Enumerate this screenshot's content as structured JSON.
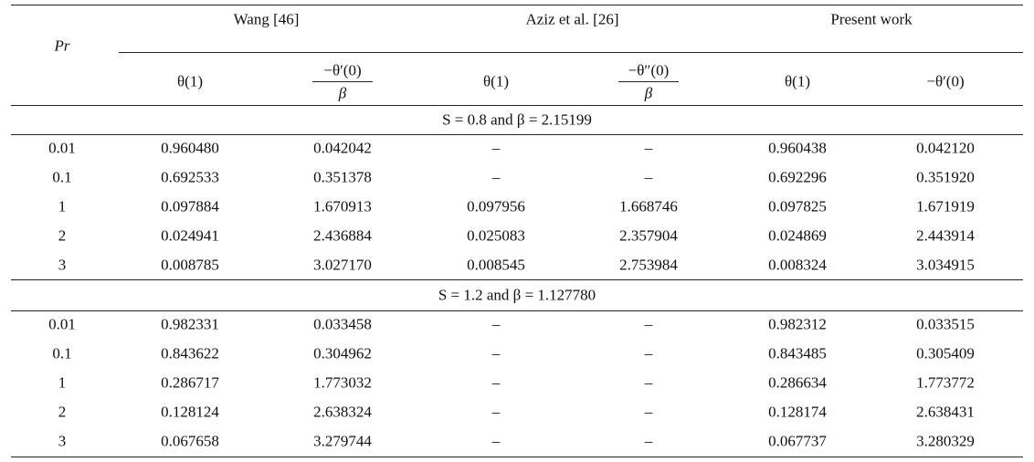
{
  "table": {
    "corner": "Pr",
    "groups": [
      "Wang [46]",
      "Aziz et al. [26]",
      "Present work"
    ],
    "columns": [
      {
        "text": "θ(1)"
      },
      {
        "numerator": "−θ′(0)",
        "denominator": "β"
      },
      {
        "text": "θ(1)"
      },
      {
        "numerator": "−θ″(0)",
        "denominator": "β"
      },
      {
        "text": "θ(1)"
      },
      {
        "text": "−θ′(0)"
      }
    ],
    "sections": [
      {
        "caption": "S = 0.8 and β = 2.15199",
        "rows": [
          [
            "0.01",
            "0.960480",
            "0.042042",
            "–",
            "–",
            "0.960438",
            "0.042120"
          ],
          [
            "0.1",
            "0.692533",
            "0.351378",
            "–",
            "–",
            "0.692296",
            "0.351920"
          ],
          [
            "1",
            "0.097884",
            "1.670913",
            "0.097956",
            "1.668746",
            "0.097825",
            "1.671919"
          ],
          [
            "2",
            "0.024941",
            "2.436884",
            "0.025083",
            "2.357904",
            "0.024869",
            "2.443914"
          ],
          [
            "3",
            "0.008785",
            "3.027170",
            "0.008545",
            "2.753984",
            "0.008324",
            "3.034915"
          ]
        ]
      },
      {
        "caption": "S = 1.2 and β = 1.127780",
        "rows": [
          [
            "0.01",
            "0.982331",
            "0.033458",
            "–",
            "–",
            "0.982312",
            "0.033515"
          ],
          [
            "0.1",
            "0.843622",
            "0.304962",
            "–",
            "–",
            "0.843485",
            "0.305409"
          ],
          [
            "1",
            "0.286717",
            "1.773032",
            "–",
            "–",
            "0.286634",
            "1.773772"
          ],
          [
            "2",
            "0.128124",
            "2.638324",
            "–",
            "–",
            "0.128174",
            "2.638431"
          ],
          [
            "3",
            "0.067658",
            "3.279744",
            "–",
            "–",
            "0.067737",
            "3.280329"
          ]
        ]
      }
    ]
  }
}
